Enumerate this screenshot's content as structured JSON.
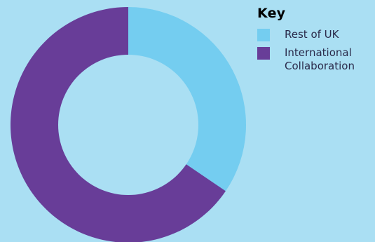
{
  "background": "#aadff3",
  "chart_data": {
    "type": "pie",
    "variant": "donut",
    "legend_title": "Key",
    "legend_position": "top-right",
    "categories": [
      "Rest of UK",
      "International\nCollaboration"
    ],
    "values": [
      34.5,
      65.5
    ],
    "unit": "%",
    "colors": [
      "#74cdf0",
      "#683d98"
    ]
  }
}
